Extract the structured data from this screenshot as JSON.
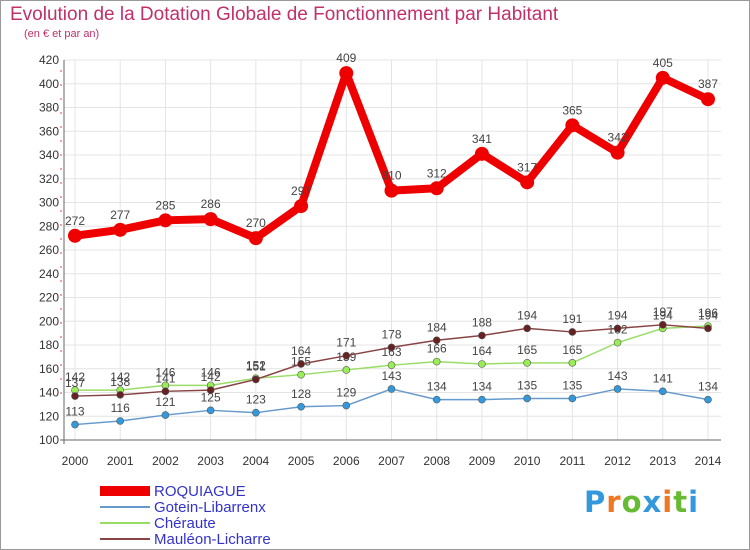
{
  "title": "Evolution de la Dotation Globale de Fonctionnement par Habitant",
  "subtitle": "(en € et par an)",
  "logo": "Proxiti",
  "chart_data": {
    "type": "line",
    "title": "Evolution de la Dotation Globale de Fonctionnement par Habitant",
    "subtitle": "(en € et par an)",
    "xlabel": "",
    "ylabel": "",
    "x": [
      "2000",
      "2001",
      "2002",
      "2003",
      "2004",
      "2005",
      "2006",
      "2007",
      "2008",
      "2009",
      "2010",
      "2011",
      "2012",
      "2013",
      "2014"
    ],
    "ylim": [
      100,
      420
    ],
    "yticks": [
      100,
      120,
      140,
      160,
      180,
      200,
      220,
      240,
      260,
      280,
      300,
      320,
      340,
      360,
      380,
      400,
      420
    ],
    "grid": true,
    "legend_position": "bottom-left",
    "series": [
      {
        "name": "ROQUIAGUE",
        "color": "#ee0000",
        "line_color": "#ee0000",
        "thick": true,
        "values": [
          272,
          277,
          285,
          286,
          270,
          297,
          409,
          310,
          312,
          341,
          317,
          365,
          342,
          405,
          387
        ]
      },
      {
        "name": "Gotein-Libarrenx",
        "color": "#3399dd",
        "line_color": "#6699cc",
        "thick": false,
        "values": [
          113,
          116,
          121,
          125,
          123,
          128,
          129,
          143,
          134,
          134,
          135,
          135,
          143,
          141,
          134
        ]
      },
      {
        "name": "Chéraute",
        "color": "#99ee55",
        "line_color": "#99dd66",
        "thick": false,
        "values": [
          142,
          142,
          146,
          146,
          152,
          155,
          159,
          163,
          166,
          164,
          165,
          165,
          182,
          194,
          196
        ]
      },
      {
        "name": "Mauléon-Licharre",
        "color": "#662222",
        "line_color": "#884444",
        "thick": false,
        "values": [
          137,
          138,
          141,
          142,
          151,
          164,
          171,
          178,
          184,
          188,
          194,
          191,
          194,
          197,
          194
        ]
      }
    ]
  }
}
